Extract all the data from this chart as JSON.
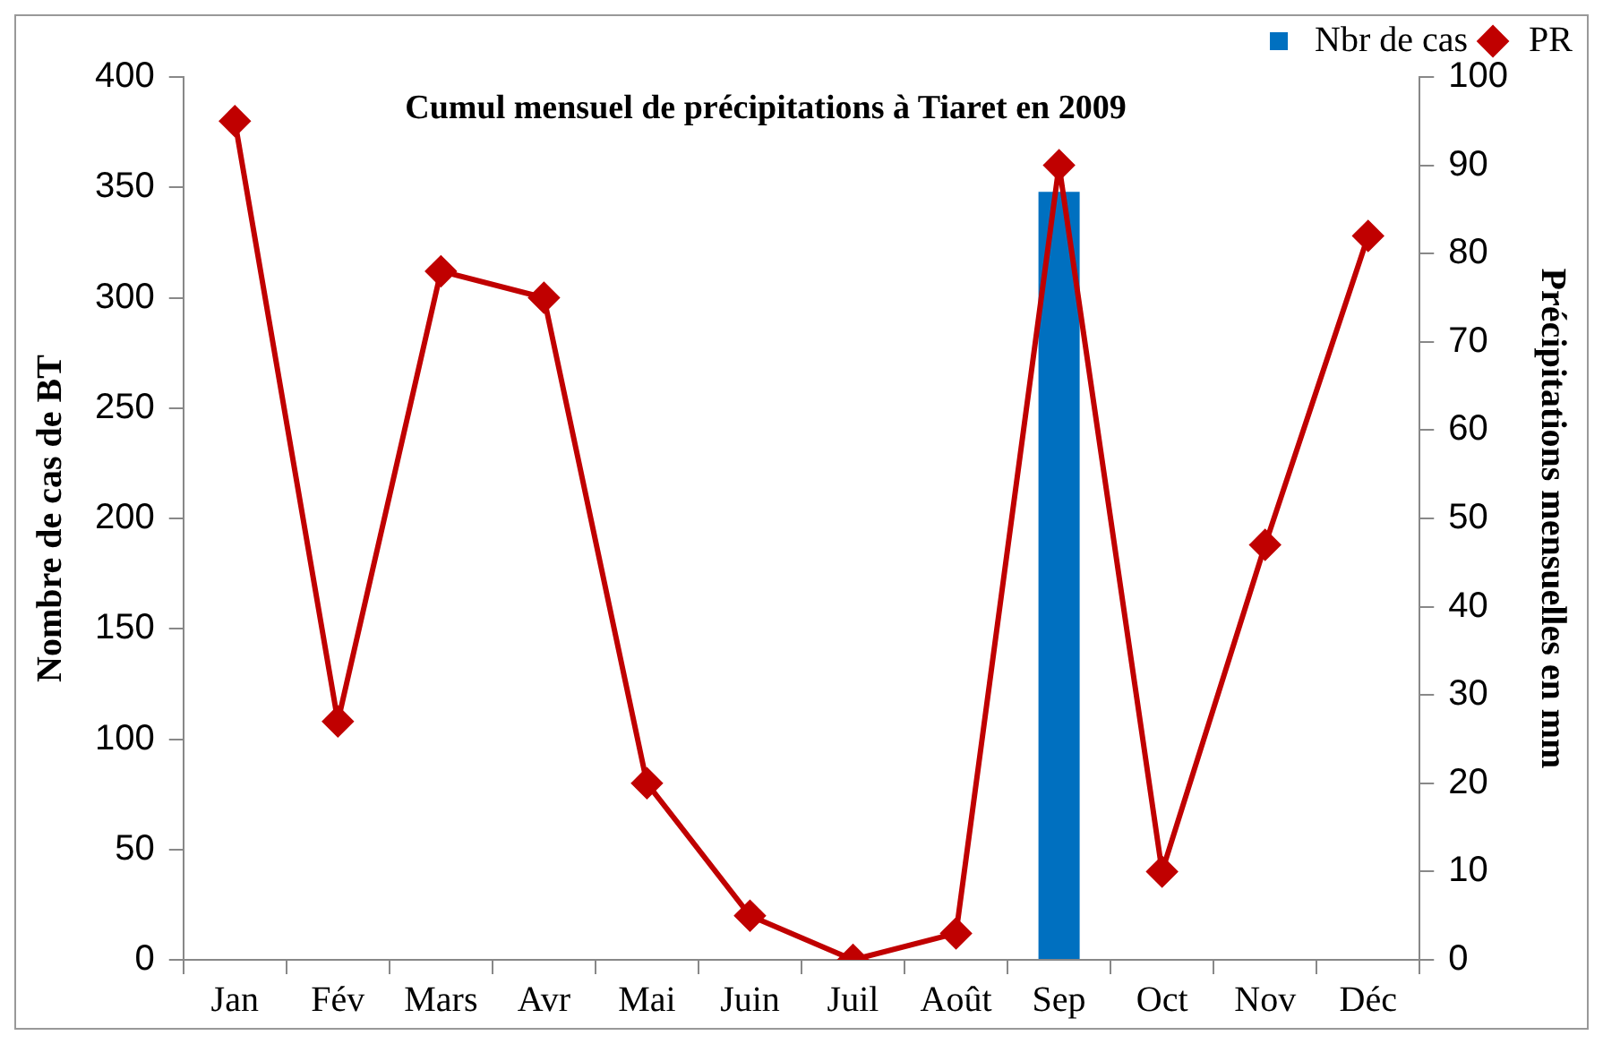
{
  "chart_data": {
    "type": "bar",
    "title": "Cumul mensuel de précipitations à Tiaret en 2009",
    "ylabel": "Nombre de cas de BT",
    "y2label": "Précipitations mensuelles en mm",
    "categories": [
      "Jan",
      "Fév",
      "Mars",
      "Avr",
      "Mai",
      "Juin",
      "Juil",
      "Août",
      "Sep",
      "Oct",
      "Nov",
      "Déc"
    ],
    "series": [
      {
        "name": "Nbr de cas",
        "type": "bar",
        "color": "#0070c0",
        "values": [
          null,
          null,
          null,
          null,
          null,
          null,
          null,
          null,
          348,
          null,
          null,
          null
        ]
      },
      {
        "name": "PR",
        "type": "line",
        "axis": "y2",
        "color": "#c00000",
        "values": [
          95,
          27,
          78,
          75,
          20,
          5,
          0,
          3,
          90,
          10,
          47,
          82
        ]
      }
    ],
    "ylim": [
      0,
      400
    ],
    "yticks": [
      0,
      50,
      100,
      150,
      200,
      250,
      300,
      350,
      400
    ],
    "y2lim": [
      0,
      100
    ],
    "y2ticks": [
      0,
      10,
      20,
      30,
      40,
      50,
      60,
      70,
      80,
      90,
      100
    ],
    "grid": false,
    "legend": "top right",
    "marker": "diamond",
    "line_style": "solid"
  }
}
